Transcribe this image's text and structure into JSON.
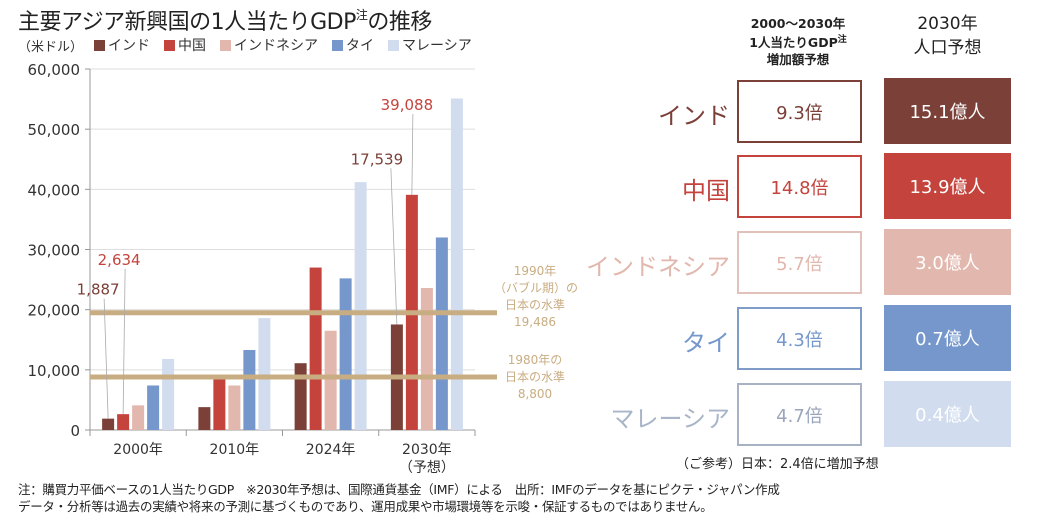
{
  "title": "主要アジア新興国の1人当たりGDP",
  "title_note": "注",
  "title_suffix": "の推移",
  "unit": "（米ドル）",
  "colors": {
    "india": "#7b4038",
    "china": "#c4443d",
    "indonesia": "#e2b7ad",
    "thailand": "#7597cb",
    "malaysia": "#d1ddee",
    "reference": "#c9ad82"
  },
  "chart_data": {
    "type": "bar",
    "title": "主要アジア新興国の1人当たりGDP注の推移",
    "ylabel": "（米ドル）",
    "xlabel": "",
    "ylim": [
      0,
      60000
    ],
    "yticks": [
      0,
      10000,
      20000,
      30000,
      40000,
      50000,
      60000
    ],
    "ytick_labels": [
      "0",
      "10,000",
      "20,000",
      "30,000",
      "40,000",
      "50,000",
      "60,000"
    ],
    "grid": true,
    "legend_position": "top",
    "categories": [
      "2000年",
      "2010年",
      "2024年",
      "2030年"
    ],
    "category_sublabels": [
      "",
      "",
      "",
      "（予想）"
    ],
    "series": [
      {
        "name": "インド",
        "key": "india",
        "values": [
          1887,
          3800,
          11100,
          17539
        ]
      },
      {
        "name": "中国",
        "key": "china",
        "values": [
          2634,
          8500,
          27000,
          39088
        ]
      },
      {
        "name": "インドネシア",
        "key": "indonesia",
        "values": [
          4100,
          7400,
          16500,
          23600
        ]
      },
      {
        "name": "タイ",
        "key": "thailand",
        "values": [
          7400,
          13300,
          25200,
          32000
        ]
      },
      {
        "name": "マレーシア",
        "key": "malaysia",
        "values": [
          11800,
          18600,
          41200,
          55100
        ]
      }
    ],
    "data_labels": [
      {
        "series": "india",
        "category": "2000年",
        "text": "1,887"
      },
      {
        "series": "china",
        "category": "2000年",
        "text": "2,634"
      },
      {
        "series": "india",
        "category": "2030年",
        "text": "17,539"
      },
      {
        "series": "china",
        "category": "2030年",
        "text": "39,088"
      }
    ],
    "reference_lines": [
      {
        "value": 19486,
        "label_lines": [
          "1990年",
          "（バブル期）の",
          "日本の水準",
          "19,486"
        ]
      },
      {
        "value": 8800,
        "label_lines": [
          "1980年の",
          "日本の水準",
          "8,800"
        ]
      }
    ]
  },
  "table": {
    "gdp_header_lines": [
      "2000〜2030年",
      "1人当たりGDP",
      "増加額予想"
    ],
    "gdp_header_note": "注",
    "pop_header_lines": [
      "2030年",
      "人口予想"
    ],
    "rows": [
      {
        "country": "インド",
        "key": "india",
        "gdp_multiple": "9.3倍",
        "population": "15.1億人"
      },
      {
        "country": "中国",
        "key": "china",
        "gdp_multiple": "14.8倍",
        "population": "13.9億人"
      },
      {
        "country": "インドネシア",
        "key": "indonesia",
        "gdp_multiple": "5.7倍",
        "population": "3.0億人"
      },
      {
        "country": "タイ",
        "key": "thailand",
        "gdp_multiple": "4.3倍",
        "population": "0.7億人"
      },
      {
        "country": "マレーシア",
        "key": "malaysia",
        "gdp_multiple": "4.7倍",
        "population": "0.4億人"
      }
    ],
    "japan_reference": "（ご参考）日本：2.4倍に増加予想"
  },
  "footnotes": [
    "注：購買力平価ベースの1人当たりGDP　※2030年予想は、国際通貨基金（IMF）による　出所：IMFのデータを基にピクテ・ジャパン作成",
    "データ・分析等は過去の実績や将来の予測に基づくものであり、運用成果や市場環境等を示唆・保証するものではありません。"
  ]
}
